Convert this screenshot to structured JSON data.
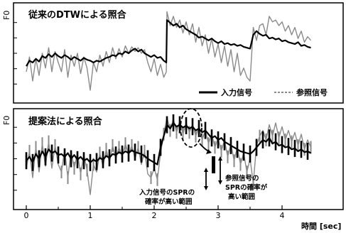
{
  "chart_data": [
    {
      "type": "line",
      "title": "従来のDTWによる照合",
      "ylabel": "F0",
      "xlim": [
        0,
        4.5
      ],
      "series": [
        {
          "name": "入力信号",
          "color": "#000000",
          "x": [
            0,
            0.05,
            0.1,
            0.15,
            0.2,
            0.25,
            0.3,
            0.35,
            0.4,
            0.45,
            0.5,
            0.55,
            0.6,
            0.65,
            0.7,
            0.75,
            0.8,
            0.85,
            0.9,
            0.95,
            1.0,
            1.05,
            1.1,
            1.15,
            1.2,
            1.25,
            1.3,
            1.35,
            1.4,
            1.45,
            1.5,
            1.55,
            1.6,
            1.65,
            1.7,
            1.75,
            1.8,
            1.85,
            1.9,
            1.95,
            2.0,
            2.05,
            2.1,
            2.15,
            2.19,
            2.2,
            2.25,
            2.3,
            2.35,
            2.4,
            2.45,
            2.5,
            2.55,
            2.6,
            2.65,
            2.7,
            2.75,
            2.8,
            2.85,
            2.9,
            2.95,
            3.0,
            3.05,
            3.1,
            3.15,
            3.2,
            3.25,
            3.3,
            3.35,
            3.4,
            3.45,
            3.5,
            3.55,
            3.6,
            3.65,
            3.7,
            3.75,
            3.8,
            3.85,
            3.9,
            3.95,
            4.0,
            4.05,
            4.1,
            4.15,
            4.2,
            4.25,
            4.3,
            4.35,
            4.4,
            4.45
          ],
          "values": [
            0.36,
            0.42,
            0.4,
            0.44,
            0.41,
            0.47,
            0.45,
            0.49,
            0.46,
            0.5,
            0.47,
            0.45,
            0.48,
            0.46,
            0.43,
            0.46,
            0.44,
            0.42,
            0.45,
            0.43,
            0.42,
            0.4,
            0.42,
            0.41,
            0.43,
            0.45,
            0.46,
            0.48,
            0.47,
            0.5,
            0.49,
            0.52,
            0.5,
            0.53,
            0.55,
            0.52,
            0.54,
            0.5,
            0.48,
            0.46,
            0.48,
            0.45,
            0.46,
            0.42,
            0.4,
            0.86,
            0.83,
            0.8,
            0.82,
            0.78,
            0.8,
            0.76,
            0.74,
            0.72,
            0.7,
            0.67,
            0.68,
            0.66,
            0.64,
            0.66,
            0.63,
            0.61,
            0.63,
            0.6,
            0.61,
            0.59,
            0.6,
            0.58,
            0.59,
            0.57,
            0.56,
            0.55,
            0.7,
            0.74,
            0.71,
            0.69,
            0.7,
            0.66,
            0.67,
            0.65,
            0.66,
            0.63,
            0.64,
            0.62,
            0.61,
            0.6,
            0.62,
            0.58,
            0.59,
            0.57,
            0.56
          ]
        },
        {
          "name": "参照信号",
          "color": "#8a8a8a",
          "x": [
            0,
            0.05,
            0.1,
            0.15,
            0.2,
            0.25,
            0.3,
            0.35,
            0.4,
            0.45,
            0.5,
            0.55,
            0.6,
            0.65,
            0.7,
            0.75,
            0.8,
            0.85,
            0.9,
            0.95,
            1.0,
            1.05,
            1.1,
            1.15,
            1.2,
            1.25,
            1.3,
            1.35,
            1.4,
            1.45,
            1.5,
            1.55,
            1.6,
            1.65,
            1.7,
            1.75,
            1.8,
            1.85,
            1.9,
            1.95,
            2.0,
            2.05,
            2.1,
            2.15,
            2.19,
            2.2,
            2.25,
            2.3,
            2.35,
            2.4,
            2.45,
            2.5,
            2.55,
            2.6,
            2.65,
            2.7,
            2.75,
            2.8,
            2.85,
            2.9,
            2.95,
            3.0,
            3.05,
            3.1,
            3.15,
            3.2,
            3.25,
            3.3,
            3.35,
            3.4,
            3.45,
            3.5,
            3.55,
            3.6,
            3.65,
            3.7,
            3.75,
            3.8,
            3.85,
            3.9,
            3.95,
            4.0,
            4.05,
            4.1,
            4.15,
            4.2,
            4.25,
            4.3,
            4.35,
            4.4,
            4.45
          ],
          "values": [
            0.3,
            0.46,
            0.2,
            0.44,
            0.26,
            0.5,
            0.34,
            0.56,
            0.3,
            0.52,
            0.4,
            0.3,
            0.54,
            0.24,
            0.48,
            0.36,
            0.5,
            0.28,
            0.46,
            0.34,
            0.1,
            0.4,
            0.3,
            0.48,
            0.36,
            0.52,
            0.4,
            0.56,
            0.44,
            0.55,
            0.46,
            0.58,
            0.5,
            0.57,
            0.52,
            0.56,
            0.5,
            0.54,
            0.4,
            0.3,
            0.44,
            0.26,
            0.38,
            0.24,
            0.3,
            0.95,
            0.8,
            0.9,
            0.78,
            0.86,
            0.72,
            0.84,
            0.7,
            0.82,
            0.62,
            0.78,
            0.58,
            0.7,
            0.5,
            0.66,
            0.46,
            0.6,
            0.4,
            0.58,
            0.36,
            0.54,
            0.3,
            0.5,
            0.26,
            0.34,
            0.24,
            0.2,
            0.78,
            0.64,
            0.8,
            0.82,
            0.7,
            0.9,
            0.84,
            0.86,
            0.8,
            0.84,
            0.74,
            0.8,
            0.7,
            0.78,
            0.66,
            0.74,
            0.62,
            0.68,
            0.64
          ]
        }
      ],
      "legend_position": "bottom-right",
      "grid": false
    },
    {
      "type": "line",
      "title": "提案法による照合",
      "ylabel": "F0",
      "xlabel": "時間 [sec]",
      "xlim": [
        0,
        4.5
      ],
      "xticks": [
        0,
        1,
        2,
        3,
        4
      ],
      "series": [
        {
          "name": "入力信号",
          "color": "#000000",
          "x": [
            0,
            0.05,
            0.1,
            0.15,
            0.2,
            0.25,
            0.3,
            0.35,
            0.4,
            0.45,
            0.5,
            0.55,
            0.6,
            0.65,
            0.7,
            0.75,
            0.8,
            0.85,
            0.9,
            0.95,
            1.0,
            1.05,
            1.1,
            1.15,
            1.2,
            1.25,
            1.3,
            1.35,
            1.4,
            1.45,
            1.5,
            1.55,
            1.6,
            1.65,
            1.7,
            1.75,
            1.8,
            1.85,
            1.9,
            1.95,
            2.0,
            2.05,
            2.1,
            2.15,
            2.2,
            2.25,
            2.3,
            2.35,
            2.4,
            2.45,
            2.5,
            2.55,
            2.6,
            2.65,
            2.7,
            2.75,
            2.8,
            2.85,
            2.9,
            2.95,
            3.0,
            3.05,
            3.1,
            3.15,
            3.2,
            3.25,
            3.3,
            3.35,
            3.4,
            3.45,
            3.5,
            3.55,
            3.6,
            3.65,
            3.7,
            3.75,
            3.8,
            3.85,
            3.9,
            3.95,
            4.0,
            4.05,
            4.1,
            4.15,
            4.2,
            4.25,
            4.3,
            4.35,
            4.4,
            4.45
          ],
          "values": [
            0.48,
            0.52,
            0.46,
            0.55,
            0.5,
            0.58,
            0.52,
            0.6,
            0.56,
            0.58,
            0.54,
            0.55,
            0.52,
            0.56,
            0.5,
            0.54,
            0.49,
            0.52,
            0.48,
            0.5,
            0.46,
            0.49,
            0.47,
            0.51,
            0.49,
            0.53,
            0.51,
            0.55,
            0.54,
            0.57,
            0.55,
            0.58,
            0.56,
            0.59,
            0.57,
            0.56,
            0.55,
            0.53,
            0.5,
            0.48,
            0.46,
            0.44,
            0.62,
            0.74,
            0.86,
            0.82,
            0.88,
            0.84,
            0.86,
            0.83,
            0.85,
            0.82,
            0.84,
            0.8,
            0.82,
            0.78,
            0.8,
            0.76,
            0.72,
            0.74,
            0.7,
            0.72,
            0.68,
            0.66,
            0.64,
            0.62,
            0.6,
            0.58,
            0.57,
            0.56,
            0.55,
            0.58,
            0.62,
            0.66,
            0.7,
            0.68,
            0.72,
            0.66,
            0.68,
            0.64,
            0.65,
            0.62,
            0.63,
            0.6,
            0.61,
            0.58,
            0.6,
            0.57,
            0.58,
            0.56
          ]
        },
        {
          "name": "参照信号",
          "color": "#8a8a8a",
          "x": [
            0,
            0.05,
            0.1,
            0.15,
            0.2,
            0.25,
            0.3,
            0.35,
            0.4,
            0.45,
            0.5,
            0.55,
            0.6,
            0.65,
            0.7,
            0.75,
            0.8,
            0.85,
            0.9,
            0.95,
            1.0,
            1.05,
            1.1,
            1.15,
            1.2,
            1.25,
            1.3,
            1.35,
            1.4,
            1.45,
            1.5,
            1.55,
            1.6,
            1.65,
            1.7,
            1.75,
            1.8,
            1.85,
            1.9,
            1.95,
            2.0,
            2.05,
            2.1,
            2.15,
            2.2,
            2.25,
            2.3,
            2.35,
            2.4,
            2.45,
            2.5,
            2.55,
            2.6,
            2.65,
            2.7,
            2.75,
            2.8,
            2.85,
            2.9,
            2.95,
            3.0,
            3.05,
            3.1,
            3.15,
            3.2,
            3.25,
            3.3,
            3.35,
            3.4,
            3.45,
            3.5,
            3.55,
            3.6,
            3.65,
            3.7,
            3.75,
            3.8,
            3.85,
            3.9,
            3.95,
            4.0,
            4.05,
            4.1,
            4.15,
            4.2,
            4.25,
            4.3,
            4.35,
            4.4,
            4.45
          ],
          "values": [
            0.4,
            0.58,
            0.3,
            0.62,
            0.36,
            0.66,
            0.42,
            0.68,
            0.4,
            0.64,
            0.44,
            0.36,
            0.6,
            0.3,
            0.58,
            0.4,
            0.56,
            0.34,
            0.54,
            0.38,
            0.12,
            0.44,
            0.36,
            0.56,
            0.42,
            0.6,
            0.46,
            0.64,
            0.5,
            0.62,
            0.52,
            0.66,
            0.54,
            0.64,
            0.5,
            0.62,
            0.44,
            0.58,
            0.34,
            0.3,
            0.4,
            0.28,
            0.56,
            0.76,
            0.94,
            0.8,
            0.92,
            0.78,
            0.9,
            0.76,
            0.88,
            0.78,
            0.86,
            0.74,
            0.84,
            0.7,
            0.8,
            0.66,
            0.76,
            0.62,
            0.72,
            0.58,
            0.7,
            0.52,
            0.66,
            0.48,
            0.62,
            0.44,
            0.56,
            0.36,
            0.5,
            0.24,
            0.64,
            0.74,
            0.8,
            0.7,
            0.86,
            0.74,
            0.88,
            0.72,
            0.84,
            0.7,
            0.8,
            0.68,
            0.78,
            0.64,
            0.76,
            0.6,
            0.7,
            0.62
          ]
        }
      ],
      "annotations": [
        {
          "text_lines": [
            "入力信号のSPRの",
            "確率が高い範囲"
          ]
        },
        {
          "text_lines": [
            "参照信号の",
            "SPRの確率が",
            "高い範囲"
          ]
        }
      ]
    }
  ]
}
